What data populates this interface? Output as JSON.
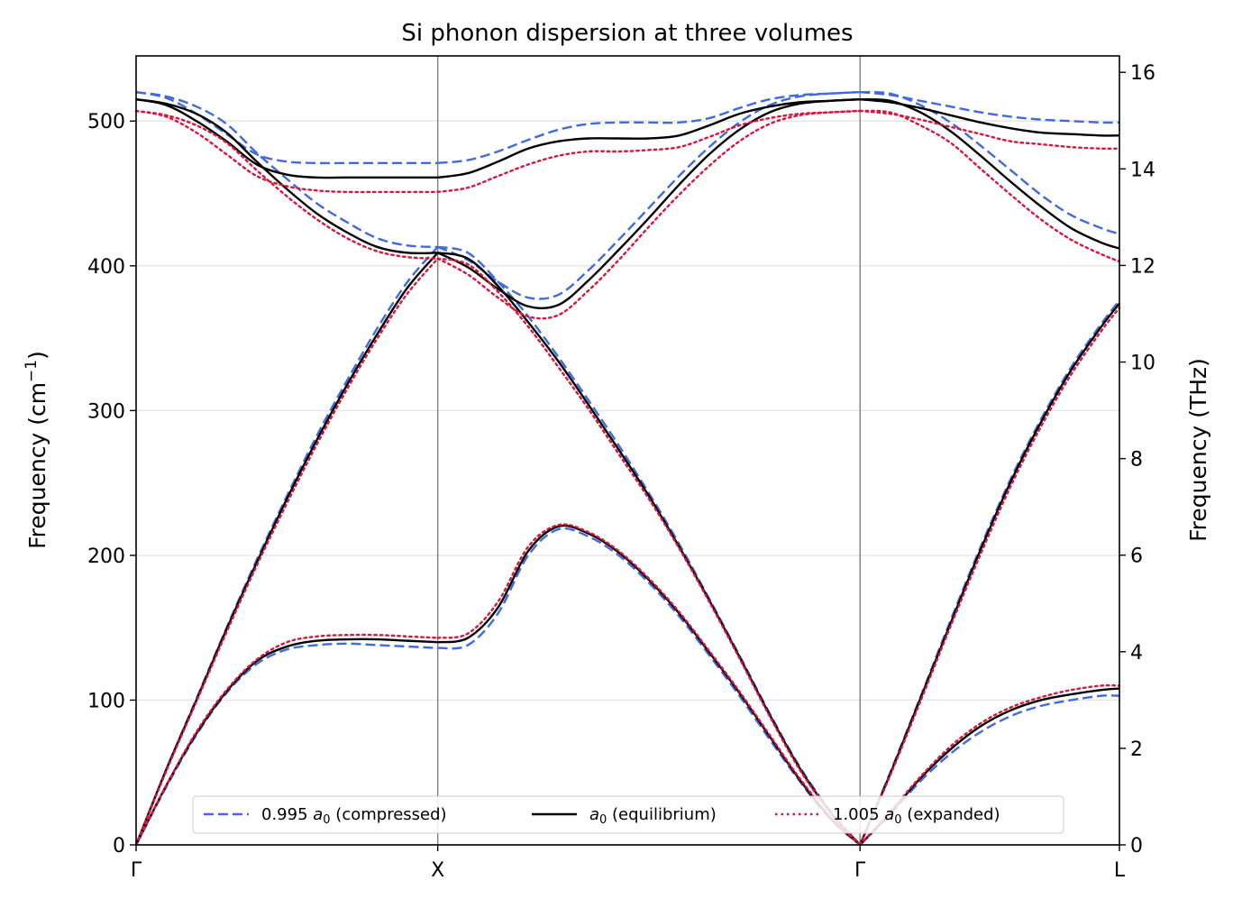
{
  "chart_data": {
    "type": "line",
    "title": "Si phonon dispersion at three volumes",
    "ylabel": "Frequency (cm",
    "ylabel_sup": "−1",
    "ylabel_close": ")",
    "y2label": "Frequency (THz)",
    "ylim": [
      0,
      545
    ],
    "y2lim": [
      0,
      16.34
    ],
    "yticks": [
      0,
      100,
      200,
      300,
      400,
      500
    ],
    "y2ticks": [
      0,
      2,
      4,
      6,
      8,
      10,
      12,
      14,
      16
    ],
    "xlim": [
      0,
      3.26
    ],
    "high_symmetry_points": [
      {
        "label": "Γ",
        "x": 0
      },
      {
        "label": "X",
        "x": 1
      },
      {
        "label": "Γ",
        "x": 2.4
      },
      {
        "label": "L",
        "x": 3.26
      }
    ],
    "grid": "horizontal",
    "legend_position": "bottom-center",
    "series": [
      {
        "name": "0.995",
        "legend_suffix": " (compressed)",
        "color": "#4169E1",
        "dash": "dashed",
        "points": [
          {
            "x": 0,
            "LA": 0,
            "TA": 0,
            "LO": 520,
            "TO": 520
          },
          {
            "x": 0.1,
            "LA": 52,
            "TA": 40,
            "LO": 517,
            "TO": 516
          },
          {
            "x": 0.2,
            "LA": 101,
            "TA": 76,
            "LO": 510,
            "TO": 505
          },
          {
            "x": 0.3,
            "LA": 150,
            "TA": 105,
            "LO": 498,
            "TO": 491
          },
          {
            "x": 0.4,
            "LA": 197,
            "TA": 125,
            "LO": 478,
            "TO": 477
          },
          {
            "x": 0.5,
            "LA": 241,
            "TA": 135,
            "LO": 460,
            "TO": 472
          },
          {
            "x": 0.6,
            "LA": 283,
            "TA": 138,
            "LO": 443,
            "TO": 471
          },
          {
            "x": 0.7,
            "LA": 321,
            "TA": 139,
            "LO": 430,
            "TO": 471
          },
          {
            "x": 0.8,
            "LA": 357,
            "TA": 138,
            "LO": 419,
            "TO": 471
          },
          {
            "x": 0.9,
            "LA": 389,
            "TA": 137,
            "LO": 414,
            "TO": 471
          },
          {
            "x": 1.0,
            "LA": 413,
            "TA": 136,
            "LO": 413,
            "TO": 471
          },
          {
            "x": 1.1,
            "LA": 409,
            "TA": 138,
            "LO": 404,
            "TO": 473
          },
          {
            "x": 1.2,
            "LA": 389,
            "TA": 160,
            "LO": 389,
            "TO": 479
          },
          {
            "x": 1.3,
            "LA": 365,
            "TA": 200,
            "LO": 378,
            "TO": 487
          },
          {
            "x": 1.4,
            "LA": 337,
            "TA": 218,
            "LO": 380,
            "TO": 494
          },
          {
            "x": 1.5,
            "LA": 307,
            "TA": 213,
            "LO": 397,
            "TO": 498
          },
          {
            "x": 1.6,
            "LA": 276,
            "TA": 200,
            "LO": 418,
            "TO": 499
          },
          {
            "x": 1.7,
            "LA": 243,
            "TA": 181,
            "LO": 440,
            "TO": 499
          },
          {
            "x": 1.8,
            "LA": 208,
            "TA": 158,
            "LO": 462,
            "TO": 499
          },
          {
            "x": 1.9,
            "LA": 170,
            "TA": 131,
            "LO": 482,
            "TO": 502
          },
          {
            "x": 2.0,
            "LA": 131,
            "TA": 103,
            "LO": 499,
            "TO": 509
          },
          {
            "x": 2.1,
            "LA": 91,
            "TA": 73,
            "LO": 511,
            "TO": 515
          },
          {
            "x": 2.2,
            "LA": 54,
            "TA": 44,
            "LO": 517,
            "TO": 518
          },
          {
            "x": 2.3,
            "LA": 24,
            "TA": 18,
            "LO": 519,
            "TO": 519
          },
          {
            "x": 2.4,
            "LA": 0,
            "TA": 0,
            "LO": 520,
            "TO": 520
          },
          {
            "x": 2.5,
            "LA": 50,
            "TA": 21,
            "LO": 519,
            "TO": 518
          },
          {
            "x": 2.6,
            "LA": 102,
            "TA": 44,
            "LO": 511,
            "TO": 514
          },
          {
            "x": 2.7,
            "LA": 155,
            "TA": 63,
            "LO": 499,
            "TO": 510
          },
          {
            "x": 2.8,
            "LA": 206,
            "TA": 78,
            "LO": 483,
            "TO": 506
          },
          {
            "x": 2.9,
            "LA": 253,
            "TA": 89,
            "LO": 466,
            "TO": 503
          },
          {
            "x": 3.0,
            "LA": 294,
            "TA": 96,
            "LO": 449,
            "TO": 501
          },
          {
            "x": 3.1,
            "LA": 330,
            "TA": 100,
            "LO": 435,
            "TO": 500
          },
          {
            "x": 3.2,
            "LA": 360,
            "TA": 103,
            "LO": 426,
            "TO": 499
          },
          {
            "x": 3.26,
            "LA": 376,
            "TA": 103,
            "LO": 422,
            "TO": 499
          }
        ]
      },
      {
        "name": "",
        "legend_suffix": " (equilibrium)",
        "color": "#000000",
        "dash": "solid",
        "points": [
          {
            "x": 0,
            "LA": 0,
            "TA": 0,
            "LO": 515,
            "TO": 515
          },
          {
            "x": 0.1,
            "LA": 52,
            "TA": 41,
            "LO": 512,
            "TO": 511
          },
          {
            "x": 0.2,
            "LA": 100,
            "TA": 77,
            "LO": 505,
            "TO": 500
          },
          {
            "x": 0.3,
            "LA": 149,
            "TA": 106,
            "LO": 492,
            "TO": 486
          },
          {
            "x": 0.4,
            "LA": 195,
            "TA": 127,
            "LO": 472,
            "TO": 470
          },
          {
            "x": 0.5,
            "LA": 239,
            "TA": 137,
            "LO": 453,
            "TO": 463
          },
          {
            "x": 0.6,
            "LA": 280,
            "TA": 141,
            "LO": 436,
            "TO": 461
          },
          {
            "x": 0.7,
            "LA": 318,
            "TA": 142,
            "LO": 423,
            "TO": 461
          },
          {
            "x": 0.8,
            "LA": 353,
            "TA": 142,
            "LO": 413,
            "TO": 461
          },
          {
            "x": 0.9,
            "LA": 385,
            "TA": 141,
            "LO": 409,
            "TO": 461
          },
          {
            "x": 1.0,
            "LA": 409,
            "TA": 140,
            "LO": 409,
            "TO": 461
          },
          {
            "x": 1.1,
            "LA": 405,
            "TA": 143,
            "LO": 399,
            "TO": 464
          },
          {
            "x": 1.2,
            "LA": 386,
            "TA": 164,
            "LO": 384,
            "TO": 472
          },
          {
            "x": 1.3,
            "LA": 361,
            "TA": 203,
            "LO": 372,
            "TO": 481
          },
          {
            "x": 1.4,
            "LA": 334,
            "TA": 220,
            "LO": 373,
            "TO": 486
          },
          {
            "x": 1.5,
            "LA": 304,
            "TA": 215,
            "LO": 390,
            "TO": 488
          },
          {
            "x": 1.6,
            "LA": 273,
            "TA": 202,
            "LO": 411,
            "TO": 488
          },
          {
            "x": 1.7,
            "LA": 241,
            "TA": 183,
            "LO": 433,
            "TO": 488
          },
          {
            "x": 1.8,
            "LA": 206,
            "TA": 160,
            "LO": 456,
            "TO": 490
          },
          {
            "x": 1.9,
            "LA": 169,
            "TA": 133,
            "LO": 477,
            "TO": 497
          },
          {
            "x": 2.0,
            "LA": 130,
            "TA": 105,
            "LO": 494,
            "TO": 505
          },
          {
            "x": 2.1,
            "LA": 90,
            "TA": 75,
            "LO": 506,
            "TO": 510
          },
          {
            "x": 2.2,
            "LA": 53,
            "TA": 45,
            "LO": 512,
            "TO": 513
          },
          {
            "x": 2.3,
            "LA": 23,
            "TA": 19,
            "LO": 514,
            "TO": 514
          },
          {
            "x": 2.4,
            "LA": 0,
            "TA": 0,
            "LO": 515,
            "TO": 515
          },
          {
            "x": 2.5,
            "LA": 49,
            "TA": 22,
            "LO": 514,
            "TO": 513
          },
          {
            "x": 2.6,
            "LA": 101,
            "TA": 46,
            "LO": 506,
            "TO": 509
          },
          {
            "x": 2.7,
            "LA": 153,
            "TA": 66,
            "LO": 493,
            "TO": 504
          },
          {
            "x": 2.8,
            "LA": 204,
            "TA": 82,
            "LO": 476,
            "TO": 499
          },
          {
            "x": 2.9,
            "LA": 251,
            "TA": 93,
            "LO": 458,
            "TO": 495
          },
          {
            "x": 3.0,
            "LA": 292,
            "TA": 100,
            "LO": 441,
            "TO": 492
          },
          {
            "x": 3.1,
            "LA": 328,
            "TA": 104,
            "LO": 426,
            "TO": 491
          },
          {
            "x": 3.2,
            "LA": 358,
            "TA": 107,
            "LO": 416,
            "TO": 490
          },
          {
            "x": 3.26,
            "LA": 374,
            "TA": 108,
            "LO": 412,
            "TO": 490
          }
        ]
      },
      {
        "name": "1.005",
        "legend_suffix": " (expanded)",
        "color": "#DC143C",
        "dash": "dotted",
        "points": [
          {
            "x": 0,
            "LA": 0,
            "TA": 0,
            "LO": 507,
            "TO": 507
          },
          {
            "x": 0.1,
            "LA": 51,
            "TA": 41,
            "LO": 504,
            "TO": 503
          },
          {
            "x": 0.2,
            "LA": 99,
            "TA": 78,
            "LO": 497,
            "TO": 492
          },
          {
            "x": 0.3,
            "LA": 147,
            "TA": 107,
            "LO": 485,
            "TO": 477
          },
          {
            "x": 0.4,
            "LA": 193,
            "TA": 128,
            "LO": 466,
            "TO": 462
          },
          {
            "x": 0.5,
            "LA": 236,
            "TA": 140,
            "LO": 448,
            "TO": 455
          },
          {
            "x": 0.6,
            "LA": 277,
            "TA": 144,
            "LO": 432,
            "TO": 452
          },
          {
            "x": 0.7,
            "LA": 315,
            "TA": 145,
            "LO": 419,
            "TO": 451
          },
          {
            "x": 0.8,
            "LA": 350,
            "TA": 145,
            "LO": 410,
            "TO": 451
          },
          {
            "x": 0.9,
            "LA": 381,
            "TA": 144,
            "LO": 406,
            "TO": 451
          },
          {
            "x": 1.0,
            "LA": 405,
            "TA": 143,
            "LO": 405,
            "TO": 451
          },
          {
            "x": 1.1,
            "LA": 401,
            "TA": 146,
            "LO": 394,
            "TO": 454
          },
          {
            "x": 1.2,
            "LA": 382,
            "TA": 168,
            "LO": 378,
            "TO": 462
          },
          {
            "x": 1.3,
            "LA": 358,
            "TA": 206,
            "LO": 365,
            "TO": 470
          },
          {
            "x": 1.4,
            "LA": 330,
            "TA": 221,
            "LO": 366,
            "TO": 476
          },
          {
            "x": 1.5,
            "LA": 301,
            "TA": 216,
            "LO": 383,
            "TO": 479
          },
          {
            "x": 1.6,
            "LA": 270,
            "TA": 203,
            "LO": 404,
            "TO": 479
          },
          {
            "x": 1.7,
            "LA": 239,
            "TA": 184,
            "LO": 427,
            "TO": 480
          },
          {
            "x": 1.8,
            "LA": 205,
            "TA": 161,
            "LO": 449,
            "TO": 482
          },
          {
            "x": 1.9,
            "LA": 168,
            "TA": 134,
            "LO": 469,
            "TO": 489
          },
          {
            "x": 2.0,
            "LA": 129,
            "TA": 106,
            "LO": 486,
            "TO": 497
          },
          {
            "x": 2.1,
            "LA": 89,
            "TA": 76,
            "LO": 498,
            "TO": 502
          },
          {
            "x": 2.2,
            "LA": 52,
            "TA": 46,
            "LO": 504,
            "TO": 505
          },
          {
            "x": 2.3,
            "LA": 23,
            "TA": 20,
            "LO": 506,
            "TO": 506
          },
          {
            "x": 2.4,
            "LA": 0,
            "TA": 0,
            "LO": 507,
            "TO": 507
          },
          {
            "x": 2.5,
            "LA": 48,
            "TA": 23,
            "LO": 506,
            "TO": 505
          },
          {
            "x": 2.6,
            "LA": 99,
            "TA": 47,
            "LO": 497,
            "TO": 501
          },
          {
            "x": 2.7,
            "LA": 151,
            "TA": 68,
            "LO": 485,
            "TO": 496
          },
          {
            "x": 2.8,
            "LA": 201,
            "TA": 84,
            "LO": 467,
            "TO": 491
          },
          {
            "x": 2.9,
            "LA": 248,
            "TA": 95,
            "LO": 449,
            "TO": 486
          },
          {
            "x": 3.0,
            "LA": 289,
            "TA": 102,
            "LO": 432,
            "TO": 484
          },
          {
            "x": 3.1,
            "LA": 325,
            "TA": 107,
            "LO": 418,
            "TO": 482
          },
          {
            "x": 3.2,
            "LA": 355,
            "TA": 110,
            "LO": 408,
            "TO": 481
          },
          {
            "x": 3.26,
            "LA": 371,
            "TA": 110,
            "LO": 403,
            "TO": 481
          }
        ]
      }
    ],
    "legend_symbol": "a",
    "legend_subscript": "0"
  }
}
